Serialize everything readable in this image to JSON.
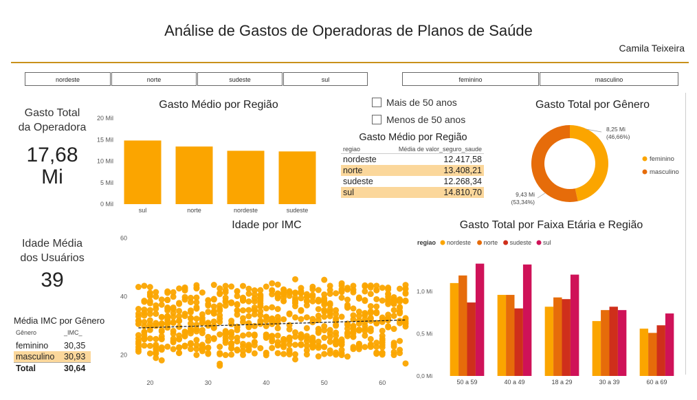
{
  "header": {
    "title": "Análise de Gastos de Operadoras de Planos de Saúde",
    "author": "Camila Teixeira"
  },
  "slicers": {
    "regions": [
      "nordeste",
      "norte",
      "sudeste",
      "sul"
    ],
    "genders": [
      "feminino",
      "masculino"
    ]
  },
  "cards": {
    "total": {
      "label1": "Gasto Total",
      "label2": "da Operadora",
      "value1": "17,68",
      "value2": "Mi"
    },
    "age": {
      "label1": "Idade Média",
      "label2": "dos Usuários",
      "value": "39"
    }
  },
  "checkboxes": [
    "Mais de 50 anos",
    "Menos de 50 anos"
  ],
  "bar_region": {
    "title": "Gasto Médio por Região",
    "chart_data": {
      "type": "bar",
      "categories": [
        "sul",
        "norte",
        "nordeste",
        "sudeste"
      ],
      "values": [
        14810.7,
        13408.21,
        12417.58,
        12268.34
      ],
      "ylim": [
        0,
        20000
      ],
      "yticks": [
        "0 Mil",
        "5 Mil",
        "10 Mil",
        "15 Mil",
        "20 Mil"
      ],
      "color": "#fba500"
    }
  },
  "table_region": {
    "title": "Gasto Médio por Região",
    "headers": [
      "regiao",
      "Média de valor_seguro_saude"
    ],
    "rows": [
      {
        "regiao": "nordeste",
        "valor": "12.417,58"
      },
      {
        "regiao": "norte",
        "valor": "13.408,21"
      },
      {
        "regiao": "sudeste",
        "valor": "12.268,34"
      },
      {
        "regiao": "sul",
        "valor": "14.810,70"
      }
    ]
  },
  "donut_gender": {
    "title": "Gasto Total por Gênero",
    "chart_data": {
      "type": "pie",
      "slices": [
        {
          "name": "feminino",
          "value": 8.25,
          "label": "8,25 Mi",
          "pct": "(46,66%)",
          "color": "#fba500"
        },
        {
          "name": "masculino",
          "value": 9.43,
          "label": "9,43 Mi",
          "pct": "(53,34%)",
          "color": "#e66c0a"
        }
      ]
    }
  },
  "scatter_imc": {
    "title": "Idade por IMC",
    "chart_data": {
      "type": "scatter",
      "xlim": [
        17,
        64
      ],
      "ylim": [
        15,
        61
      ],
      "xticks": [
        "20",
        "30",
        "40",
        "50",
        "60"
      ],
      "yticks": [
        "20",
        "40",
        "60"
      ],
      "trend": [
        [
          18,
          29.3
        ],
        [
          64,
          32.0
        ]
      ],
      "color": "#fba500"
    }
  },
  "imc_table": {
    "title": "Média IMC por Gênero",
    "headers": [
      "Gênero",
      "_IMC_"
    ],
    "rows": [
      {
        "g": "feminino",
        "v": "30,35"
      },
      {
        "g": "masculino",
        "v": "30,93"
      }
    ],
    "total": {
      "g": "Total",
      "v": "30,64"
    }
  },
  "age_region": {
    "title": "Gasto Total por Faixa Etária e Região",
    "legend_title": "regiao",
    "chart_data": {
      "type": "bar",
      "categories": [
        "50 a 59",
        "40 a 49",
        "18 a 29",
        "30 a 39",
        "60 a 69"
      ],
      "series": [
        {
          "name": "nordeste",
          "color": "#fba500",
          "values": [
            1.1,
            0.96,
            0.82,
            0.65,
            0.56
          ]
        },
        {
          "name": "norte",
          "color": "#e66c0a",
          "values": [
            1.19,
            0.96,
            0.93,
            0.78,
            0.51
          ]
        },
        {
          "name": "sudeste",
          "color": "#cf2f1b",
          "values": [
            0.87,
            0.8,
            0.91,
            0.82,
            0.6
          ]
        },
        {
          "name": "sul",
          "color": "#cf1258",
          "values": [
            1.33,
            1.32,
            1.2,
            0.78,
            0.74
          ]
        }
      ],
      "ylim": [
        0,
        1.4
      ],
      "yticks": [
        "0,0 Mi",
        "0,5 Mi",
        "1,0 Mi"
      ]
    }
  }
}
